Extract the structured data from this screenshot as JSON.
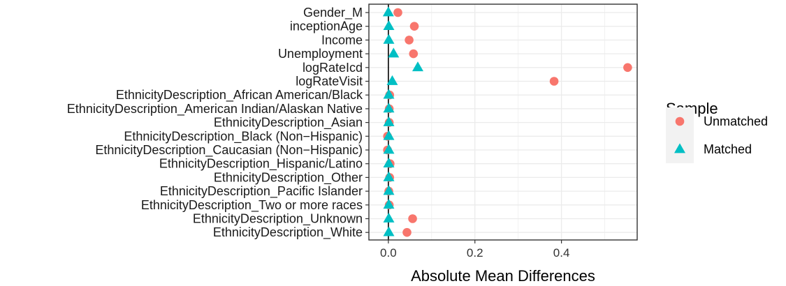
{
  "chart_data": {
    "type": "scatter",
    "title": "",
    "xlabel": "Absolute Mean Differences",
    "ylabel": "",
    "xlim": [
      -0.045,
      0.575
    ],
    "xticks": [
      0.0,
      0.2,
      0.4
    ],
    "xtick_labels": [
      "0.0",
      "0.2",
      "0.4"
    ],
    "grid": true,
    "vline_at": 0,
    "legend_position": "right",
    "legend_title": "Sample",
    "categories": [
      "Gender_M",
      "inceptionAge",
      "Income",
      "Unemployment",
      "logRateIcd",
      "logRateVisit",
      "EthnicityDescription_African American/Black",
      "EthnicityDescription_American Indian/Alaskan Native",
      "EthnicityDescription_Asian",
      "EthnicityDescription_Black (Non−Hispanic)",
      "EthnicityDescription_Caucasian (Non−Hispanic)",
      "EthnicityDescription_Hispanic/Latino",
      "EthnicityDescription_Other",
      "EthnicityDescription_Pacific Islander",
      "EthnicityDescription_Two or more races",
      "EthnicityDescription_Unknown",
      "EthnicityDescription_White"
    ],
    "series": [
      {
        "name": "Unmatched",
        "marker": "circle",
        "color": "#F8766D",
        "values": [
          0.022,
          0.06,
          0.048,
          0.058,
          0.553,
          0.383,
          0.003,
          0.002,
          0.002,
          -0.002,
          -0.002,
          0.004,
          0.003,
          0.001,
          0.002,
          0.056,
          0.043
        ]
      },
      {
        "name": "Matched",
        "marker": "triangle",
        "color": "#00BFC4",
        "values": [
          0.0,
          0.001,
          0.001,
          0.012,
          0.068,
          0.009,
          0.001,
          0.001,
          0.001,
          0.001,
          0.001,
          0.001,
          0.001,
          0.001,
          0.001,
          0.001,
          0.001
        ]
      }
    ]
  },
  "colors": {
    "panel_background": "#ffffff",
    "panel_border": "#333333",
    "grid": "#ebebeb",
    "legend_key_background": "#f2f2f2"
  }
}
